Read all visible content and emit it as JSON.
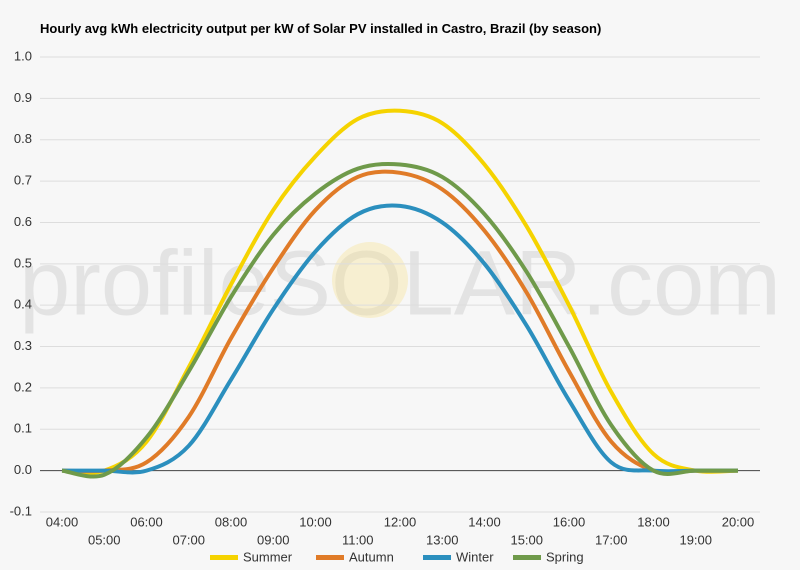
{
  "chart_data": {
    "type": "line",
    "title": "Hourly avg kWh electricity output per kW of Solar PV installed in Castro, Brazil (by season)",
    "watermark": "profileSOLAR.com",
    "categories": [
      "04:00",
      "05:00",
      "06:00",
      "07:00",
      "08:00",
      "09:00",
      "10:00",
      "11:00",
      "12:00",
      "13:00",
      "14:00",
      "15:00",
      "16:00",
      "17:00",
      "18:00",
      "19:00",
      "20:00"
    ],
    "series": [
      {
        "name": "Summer",
        "color": "#f5d300",
        "values": [
          0,
          0,
          0.07,
          0.25,
          0.45,
          0.63,
          0.76,
          0.85,
          0.87,
          0.84,
          0.74,
          0.59,
          0.4,
          0.19,
          0.04,
          0,
          0
        ]
      },
      {
        "name": "Autumn",
        "color": "#e07b28",
        "values": [
          0,
          0,
          0.02,
          0.13,
          0.32,
          0.49,
          0.63,
          0.71,
          0.72,
          0.68,
          0.58,
          0.43,
          0.24,
          0.07,
          0,
          0,
          0
        ]
      },
      {
        "name": "Winter",
        "color": "#2b8fbe",
        "values": [
          0,
          0,
          0,
          0.06,
          0.22,
          0.39,
          0.53,
          0.62,
          0.64,
          0.6,
          0.5,
          0.35,
          0.17,
          0.02,
          0,
          0,
          0
        ]
      },
      {
        "name": "Spring",
        "color": "#6f9a4a",
        "values": [
          0,
          -0.01,
          0.08,
          0.24,
          0.42,
          0.57,
          0.67,
          0.73,
          0.74,
          0.71,
          0.62,
          0.48,
          0.3,
          0.11,
          0,
          0,
          0
        ]
      }
    ],
    "ylim": [
      -0.1,
      1
    ],
    "yticks": [
      -0.1,
      {
        "value": 0,
        "label": "0.0"
      },
      0.1,
      0.2,
      0.3,
      0.4,
      0.5,
      0.6,
      0.7,
      0.8,
      0.9,
      {
        "value": 1,
        "label": "1.0"
      }
    ],
    "grid": true,
    "legend": "bottom"
  }
}
